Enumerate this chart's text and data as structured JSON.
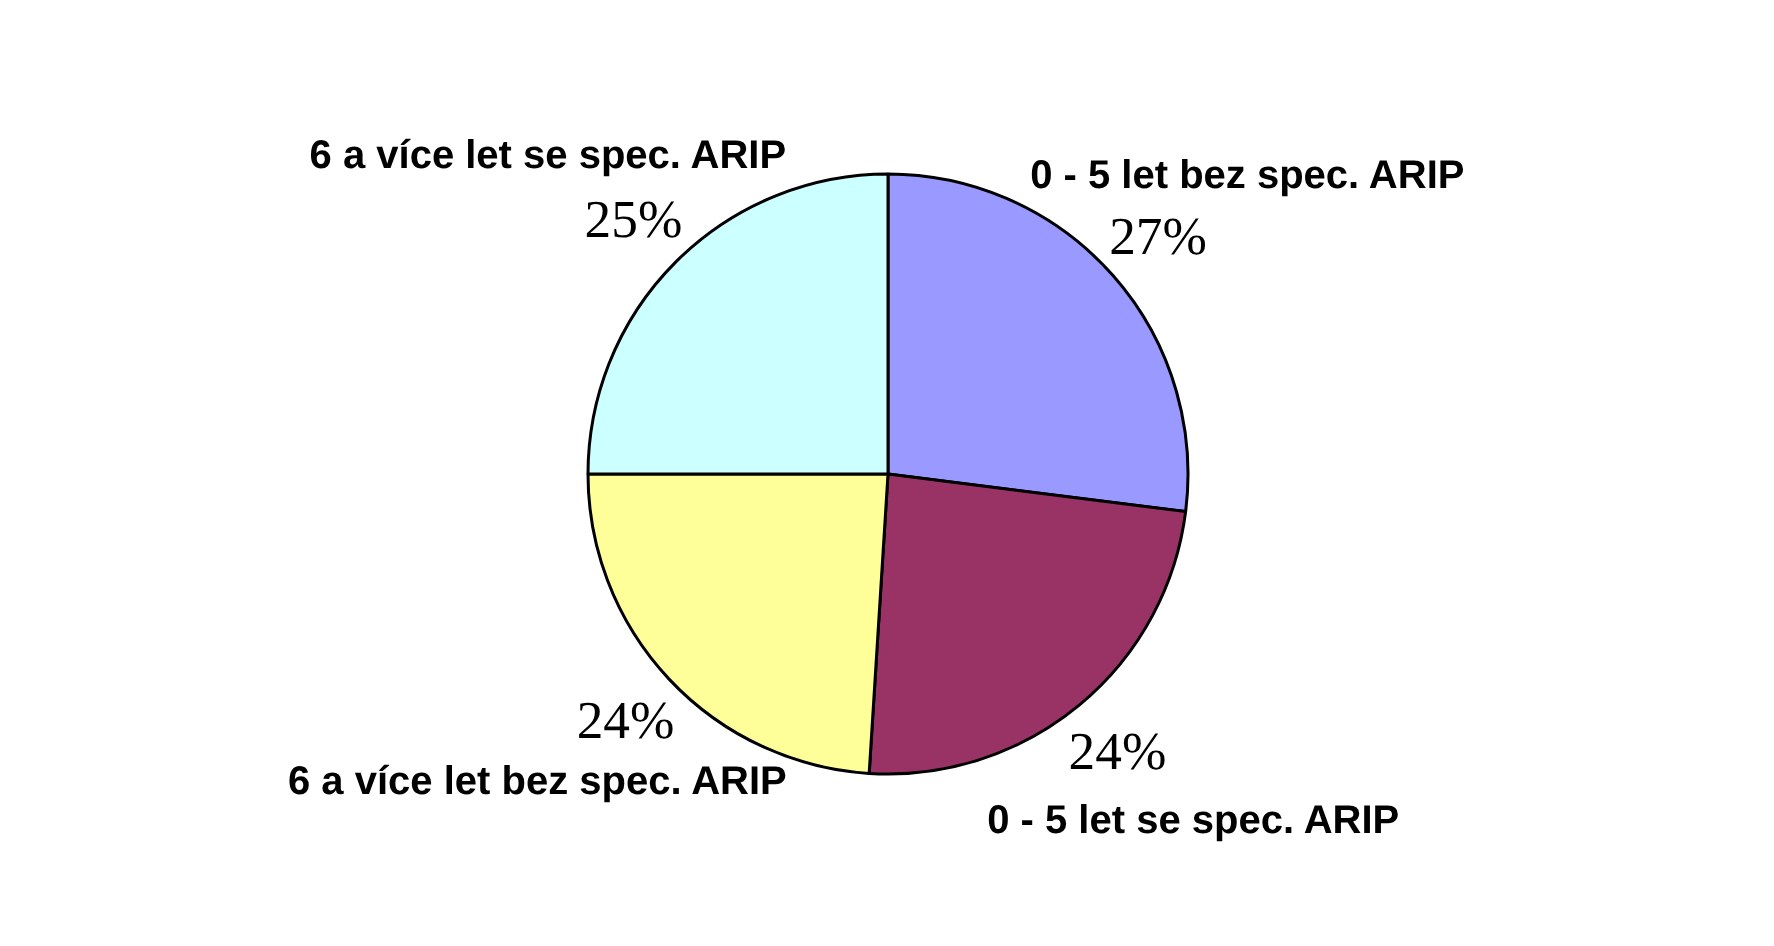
{
  "chart_data": {
    "type": "pie",
    "categories": [
      "0 - 5 let bez spec. ARIP",
      "0 - 5 let se spec. ARIP",
      "6 a více let bez spec. ARIP",
      "6 a více let se spec. ARIP"
    ],
    "values": [
      27,
      24,
      24,
      25
    ],
    "colors": [
      "#9999ff",
      "#993366",
      "#ffff99",
      "#ccffff"
    ],
    "value_labels": [
      "27%",
      "24%",
      "24%",
      "25%"
    ]
  }
}
